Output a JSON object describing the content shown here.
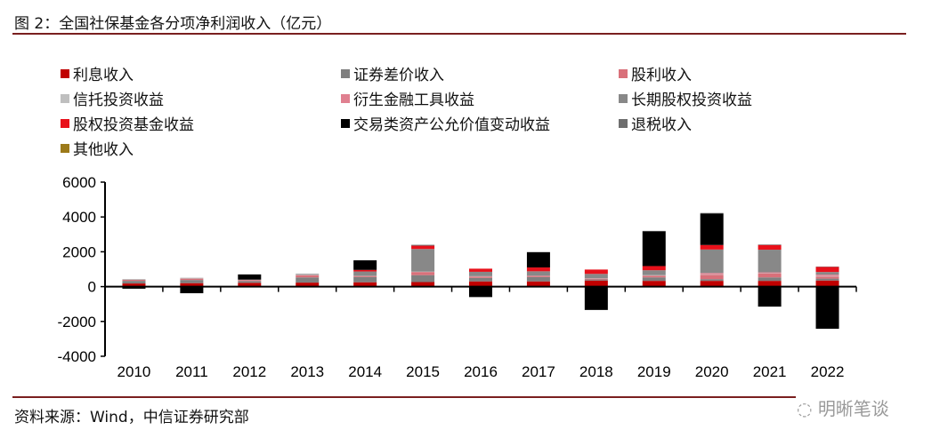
{
  "title": "图 2：全国社保基金各分项净利润收入（亿元）",
  "source": "资料来源：Wind，中信证券研究部",
  "logo_text": "明晰笔谈",
  "chart_data": {
    "type": "bar",
    "stacked": true,
    "title": "",
    "xlabel": "",
    "ylabel": "",
    "ylim": [
      -4000,
      6000
    ],
    "yticks": [
      6000,
      4000,
      2000,
      0,
      -2000,
      -4000
    ],
    "grid": false,
    "legend_position": "top",
    "categories": [
      "2010",
      "2011",
      "2012",
      "2013",
      "2014",
      "2015",
      "2016",
      "2017",
      "2018",
      "2019",
      "2020",
      "2021",
      "2022"
    ],
    "series": [
      {
        "name": "利息收入",
        "color": "#C00000",
        "values": [
          180,
          200,
          220,
          230,
          250,
          260,
          300,
          300,
          350,
          330,
          330,
          330,
          350
        ]
      },
      {
        "name": "证券差价收入",
        "color": "#7F7F7F",
        "values": [
          150,
          180,
          100,
          300,
          300,
          400,
          200,
          250,
          60,
          200,
          100,
          200,
          110
        ]
      },
      {
        "name": "股利收入",
        "color": "#D9707A",
        "values": [
          60,
          80,
          60,
          130,
          60,
          180,
          80,
          70,
          50,
          100,
          250,
          220,
          120
        ]
      },
      {
        "name": "信托投资收益",
        "color": "#BFBFBF",
        "values": [
          30,
          30,
          20,
          60,
          10,
          20,
          20,
          10,
          20,
          30,
          20,
          20,
          30
        ]
      },
      {
        "name": "衍生金融工具收益",
        "color": "#E08090",
        "values": [
          0,
          0,
          0,
          0,
          0,
          0,
          0,
          0,
          0,
          0,
          80,
          50,
          80
        ]
      },
      {
        "name": "长期股权投资收益",
        "color": "#888888",
        "values": [
          0,
          0,
          0,
          0,
          250,
          1300,
          250,
          250,
          250,
          280,
          1350,
          1300,
          150
        ]
      },
      {
        "name": "股权投资基金收益",
        "color": "#E8101A",
        "values": [
          0,
          0,
          0,
          0,
          90,
          190,
          180,
          220,
          250,
          240,
          260,
          270,
          290
        ]
      },
      {
        "name": "交易类资产公允价值变动收益",
        "color": "#000000",
        "values": [
          -120,
          -380,
          300,
          0,
          550,
          0,
          -600,
          880,
          -1340,
          2000,
          1800,
          -1150,
          -2420
        ]
      },
      {
        "name": "退税收入",
        "color": "#6E6E6E",
        "values": [
          10,
          10,
          0,
          20,
          0,
          50,
          0,
          0,
          0,
          20,
          40,
          30,
          20
        ]
      },
      {
        "name": "其他收入",
        "color": "#9C7A1A",
        "values": [
          0,
          0,
          0,
          0,
          0,
          0,
          0,
          0,
          0,
          0,
          0,
          0,
          0
        ]
      }
    ]
  }
}
